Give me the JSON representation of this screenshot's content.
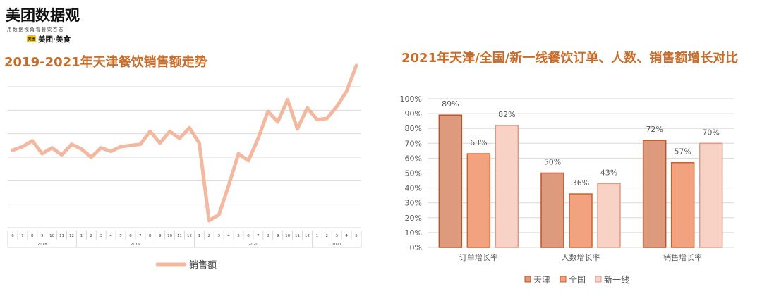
{
  "logo": {
    "title": "美团数据观",
    "subtitle": "用数据视角看餐饮百态",
    "brand_badge": "美团",
    "brand": "美团·美食"
  },
  "colors": {
    "title": "#c86c2a",
    "line": "#f2b9a0",
    "grid": "#d9d9d9",
    "tianjin": "#dd9a7c",
    "tianjin_border": "#b8542a",
    "national": "#f3a27f",
    "national_border": "#c8622c",
    "firsttier": "#f8d2c4",
    "firsttier_border": "#dd9a85",
    "axis_text": "#595959"
  },
  "chart_data": [
    {
      "type": "line",
      "title": "2019-2021年天津餐饮销售额走势",
      "xlabel": "",
      "ylabel": "",
      "grid": true,
      "legend_position": "bottom",
      "x": [
        "6",
        "7",
        "8",
        "9",
        "10",
        "11",
        "12",
        "1",
        "2",
        "3",
        "4",
        "5",
        "6",
        "7",
        "8",
        "9",
        "10",
        "11",
        "12",
        "1",
        "2",
        "3",
        "4",
        "5",
        "6",
        "7",
        "8",
        "9",
        "10",
        "11",
        "12",
        "1",
        "2",
        "3",
        "4",
        "5"
      ],
      "year_groups": [
        {
          "label": "2018",
          "count": 7
        },
        {
          "label": "2019",
          "count": 12
        },
        {
          "label": "2020",
          "count": 12
        },
        {
          "label": "2021",
          "count": 5
        }
      ],
      "ylim": [
        0,
        6
      ],
      "series": [
        {
          "name": "销售额",
          "values": [
            3.3,
            3.45,
            3.7,
            3.15,
            3.4,
            3.1,
            3.55,
            3.35,
            3.0,
            3.4,
            3.25,
            3.45,
            3.5,
            3.55,
            4.1,
            3.6,
            4.1,
            3.8,
            4.25,
            3.6,
            0.3,
            0.55,
            1.8,
            3.15,
            2.85,
            3.8,
            4.95,
            4.5,
            5.45,
            4.2,
            5.1,
            4.6,
            4.65,
            5.15,
            5.8,
            6.9
          ]
        }
      ]
    },
    {
      "type": "bar",
      "title": "2021年天津/全国/新一线餐饮订单、人数、销售额增长对比",
      "xlabel": "",
      "ylabel": "",
      "grid": true,
      "legend_position": "bottom",
      "categories": [
        "订单增长率",
        "人数增长率",
        "销售增长率"
      ],
      "ylim": [
        0,
        100
      ],
      "y_ticks": [
        "0%",
        "10%",
        "20%",
        "30%",
        "40%",
        "50%",
        "60%",
        "70%",
        "80%",
        "90%",
        "100%"
      ],
      "series": [
        {
          "name": "天津",
          "values": [
            89,
            50,
            72
          ],
          "labels": [
            "89%",
            "50%",
            "72%"
          ]
        },
        {
          "name": "全国",
          "values": [
            63,
            36,
            57
          ],
          "labels": [
            "63%",
            "36%",
            "57%"
          ]
        },
        {
          "name": "新一线",
          "values": [
            82,
            43,
            70
          ],
          "labels": [
            "82%",
            "43%",
            "70%"
          ]
        }
      ]
    }
  ]
}
